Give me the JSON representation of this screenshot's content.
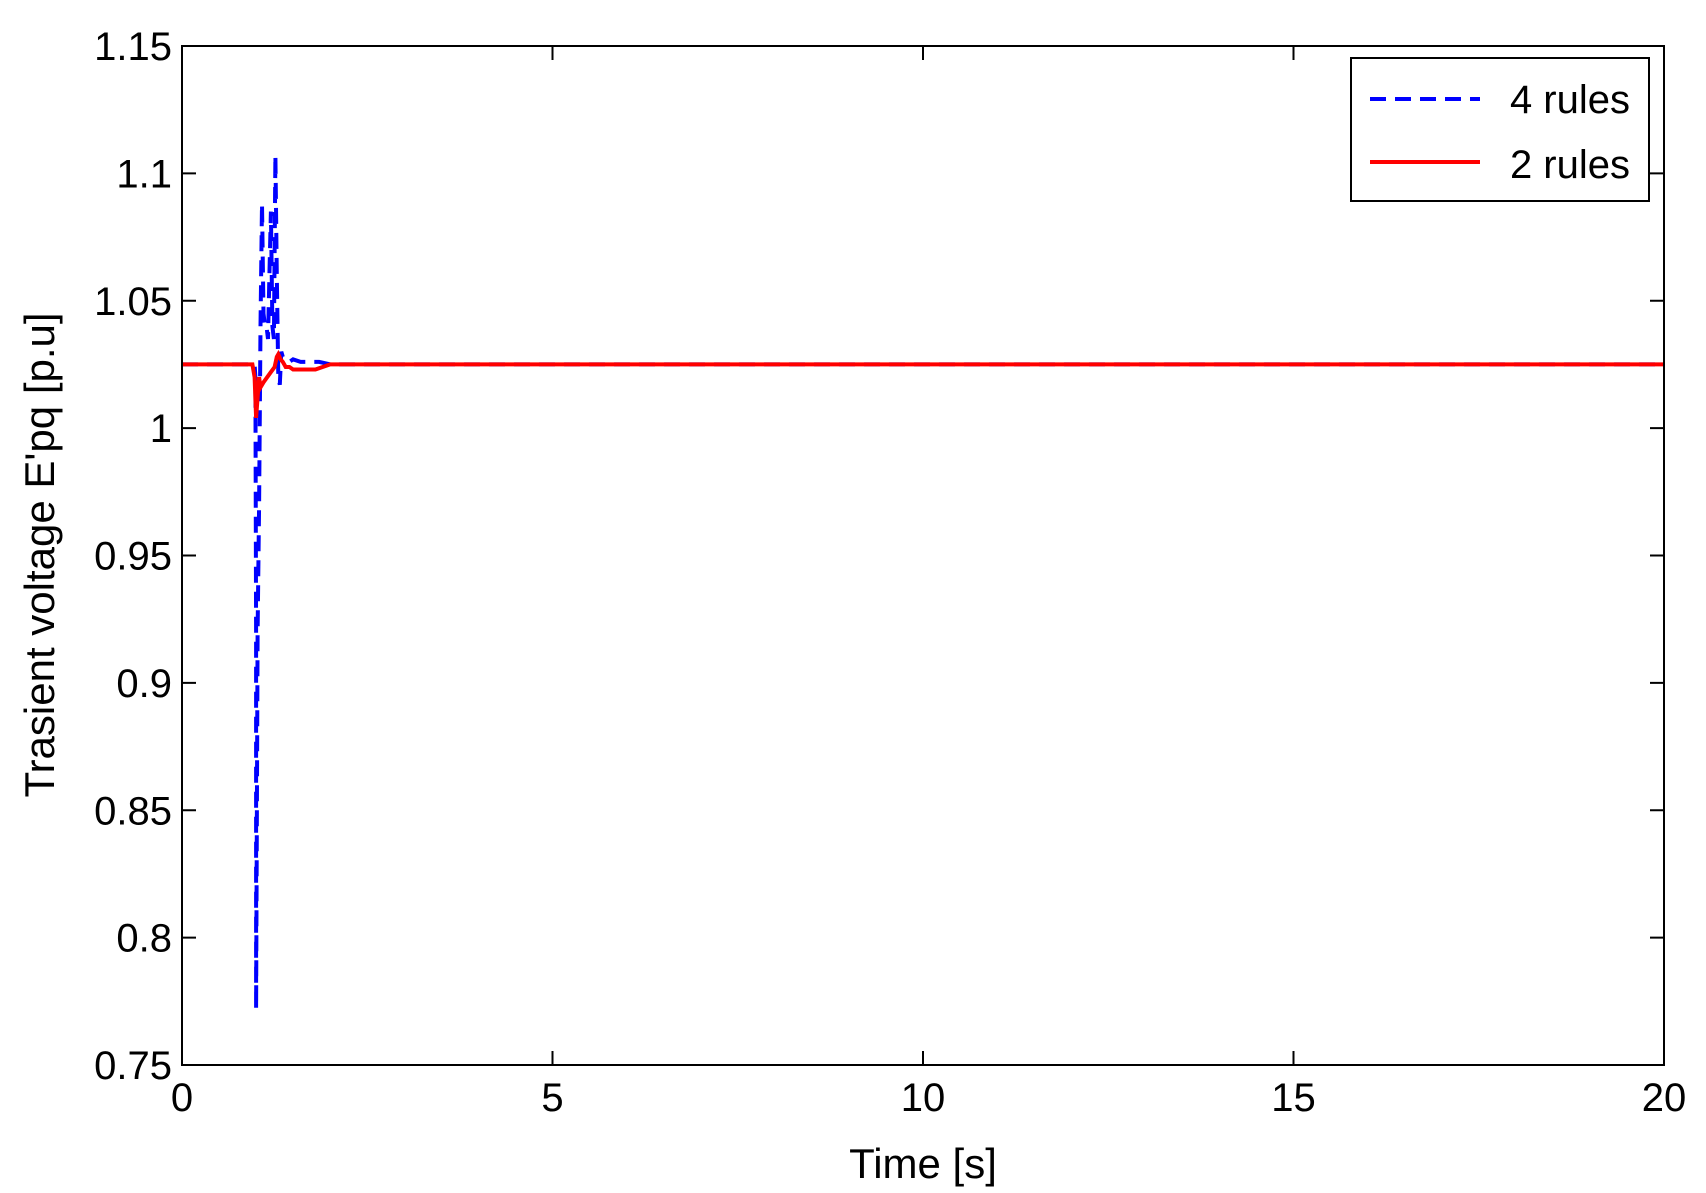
{
  "chart_data": {
    "type": "line",
    "xlabel": "Time [s]",
    "ylabel": "Trasient voltage E'pq [p.u]",
    "xlim": [
      0,
      20
    ],
    "ylim": [
      0.75,
      1.15
    ],
    "xticks": [
      "0",
      "5",
      "10",
      "15",
      "20"
    ],
    "yticks": [
      "0.75",
      "0.8",
      "0.85",
      "0.9",
      "0.95",
      "1",
      "1.05",
      "1.1",
      "1.15"
    ],
    "grid": false,
    "legend_position": "top-right",
    "series": [
      {
        "name": "4 rules",
        "color": "#0000ff",
        "style": "dashed",
        "x": [
          0,
          0.98,
          0.99,
          1.0,
          1.0,
          1.02,
          1.04,
          1.06,
          1.08,
          1.1,
          1.12,
          1.14,
          1.16,
          1.18,
          1.2,
          1.22,
          1.24,
          1.26,
          1.28,
          1.3,
          1.32,
          1.34,
          1.36,
          1.4,
          1.45,
          1.5,
          1.6,
          1.7,
          1.85,
          2.0,
          20
        ],
        "y": [
          1.025,
          1.025,
          1.02,
          0.92,
          0.772,
          0.92,
          0.97,
          1.04,
          1.088,
          1.045,
          1.04,
          1.04,
          1.035,
          1.06,
          1.085,
          1.04,
          1.035,
          1.107,
          1.06,
          1.02,
          1.017,
          1.03,
          1.028,
          1.027,
          1.026,
          1.027,
          1.026,
          1.026,
          1.026,
          1.025,
          1.025
        ]
      },
      {
        "name": "2 rules",
        "color": "#ff0000",
        "style": "solid",
        "x": [
          0,
          0.95,
          0.98,
          1.0,
          1.02,
          1.04,
          1.06,
          1.1,
          1.15,
          1.2,
          1.25,
          1.28,
          1.3,
          1.33,
          1.36,
          1.4,
          1.45,
          1.5,
          1.6,
          1.8,
          2.0,
          20
        ],
        "y": [
          1.025,
          1.025,
          1.02,
          1.004,
          1.012,
          1.02,
          1.016,
          1.018,
          1.02,
          1.022,
          1.024,
          1.028,
          1.029,
          1.027,
          1.026,
          1.024,
          1.024,
          1.023,
          1.023,
          1.023,
          1.025,
          1.025
        ]
      }
    ]
  }
}
